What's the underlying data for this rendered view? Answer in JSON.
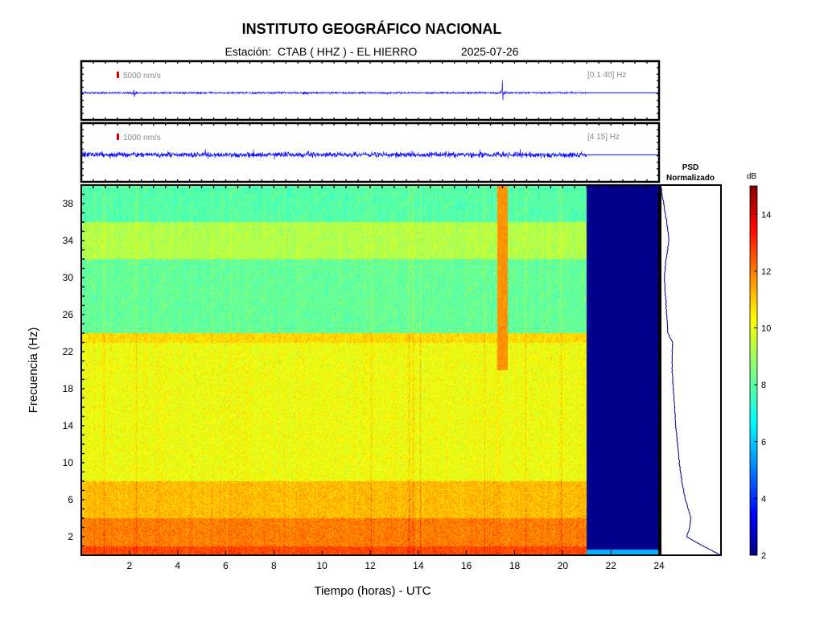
{
  "header": {
    "title": "INSTITUTO GEOGRÁFICO NACIONAL",
    "station_label": "Estación:",
    "station": "CTAB ( HHZ ) - EL HIERRO",
    "date": "2025-07-26"
  },
  "chart_data": [
    {
      "type": "line",
      "panel": "seismogram-broadband",
      "scale_label": "5000 nm/s",
      "band_label": "[0.1 40] Hz",
      "x_range_hours": [
        0,
        24
      ],
      "data_end_hour": 21,
      "events": [
        {
          "hour": 17.5,
          "relative_amplitude": 1.0
        },
        {
          "hour": 2.2,
          "relative_amplitude": 0.3
        },
        {
          "hour": 9.3,
          "relative_amplitude": 0.25
        }
      ],
      "line_color": "#0000ff",
      "scale_bar_color": "#e00000"
    },
    {
      "type": "line",
      "panel": "seismogram-filtered",
      "scale_label": "1000 nm/s",
      "band_label": "[4 15] Hz",
      "x_range_hours": [
        0,
        24
      ],
      "data_end_hour": 21,
      "line_color": "#0000ff",
      "scale_bar_color": "#e00000"
    },
    {
      "type": "heatmap",
      "panel": "spectrogram",
      "xlabel": "Tiempo (horas) - UTC",
      "ylabel": "Frecuencia  (Hz)",
      "xlim": [
        0,
        24
      ],
      "ylim": [
        0,
        40
      ],
      "x_ticks": [
        2,
        4,
        6,
        8,
        10,
        12,
        14,
        16,
        18,
        20,
        22,
        24
      ],
      "y_ticks": [
        2,
        6,
        10,
        14,
        18,
        22,
        26,
        30,
        34,
        38
      ],
      "data_end_hour": 21,
      "noise_bands_db": [
        {
          "freq_from": 0,
          "freq_to": 1,
          "level_db": 12.5
        },
        {
          "freq_from": 1,
          "freq_to": 4,
          "level_db": 11.8
        },
        {
          "freq_from": 4,
          "freq_to": 8,
          "level_db": 11.0
        },
        {
          "freq_from": 8,
          "freq_to": 23,
          "level_db": 10.0
        },
        {
          "freq_from": 23,
          "freq_to": 24,
          "level_db": 10.6
        },
        {
          "freq_from": 24,
          "freq_to": 32,
          "level_db": 8.2
        },
        {
          "freq_from": 32,
          "freq_to": 36,
          "level_db": 9.2
        },
        {
          "freq_from": 36,
          "freq_to": 40,
          "level_db": 8.0
        }
      ],
      "vertical_streaks": [
        {
          "hour": 17.5,
          "level_db": 11.5
        }
      ]
    },
    {
      "type": "line",
      "panel": "psd",
      "title_line1": "PSD",
      "title_line2": "Normalizado",
      "freq": [
        0,
        1,
        2,
        3,
        4,
        5,
        6,
        8,
        10,
        12,
        14,
        16,
        18,
        20,
        22,
        23,
        24,
        26,
        28,
        30,
        32,
        34,
        36,
        38,
        40
      ],
      "psd": [
        1.0,
        0.7,
        0.43,
        0.48,
        0.5,
        0.46,
        0.41,
        0.35,
        0.31,
        0.28,
        0.25,
        0.23,
        0.21,
        0.19,
        0.19,
        0.2,
        0.12,
        0.1,
        0.08,
        0.06,
        0.09,
        0.14,
        0.1,
        0.05,
        0.0
      ],
      "line_color": "#00008b"
    },
    {
      "type": "heatmap",
      "panel": "colorbar",
      "label": "dB",
      "range": [
        2,
        15
      ],
      "ticks": [
        2,
        4,
        6,
        8,
        10,
        12,
        14
      ]
    }
  ]
}
